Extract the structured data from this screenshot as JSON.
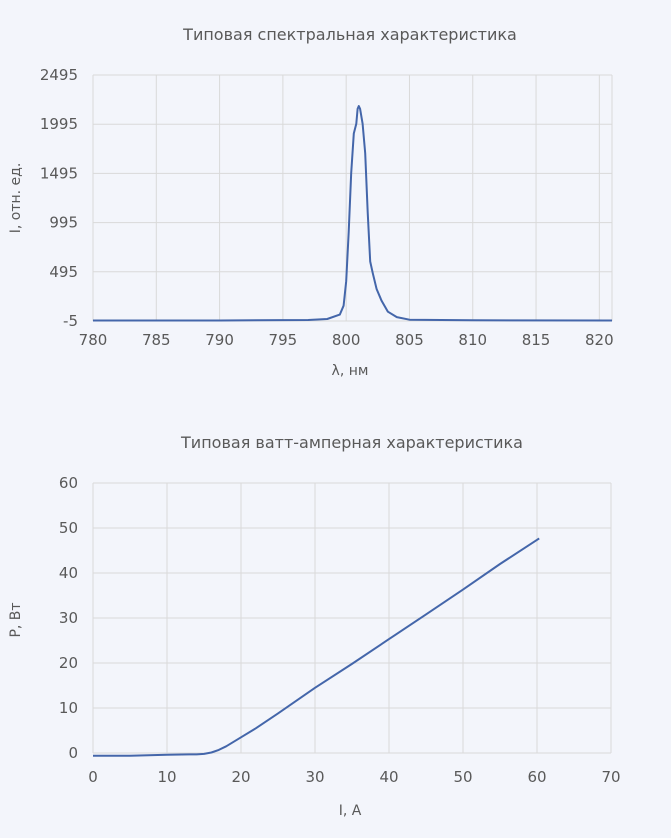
{
  "chart_data": [
    {
      "type": "line",
      "title": "Типовая спектральная характеристика",
      "xlabel": "λ, нм",
      "ylabel": "I, отн. ед.",
      "xlim": [
        780,
        821
      ],
      "ylim": [
        -5,
        2495
      ],
      "xticks": [
        780,
        785,
        790,
        795,
        800,
        805,
        810,
        815,
        820
      ],
      "yticks": [
        -5,
        495,
        995,
        1495,
        1995,
        2495
      ],
      "grid": true,
      "series": [
        {
          "color": "#4466aa",
          "x": [
            780,
            790,
            797,
            798.5,
            799.5,
            799.8,
            800.0,
            800.2,
            800.4,
            800.6,
            800.8,
            800.9,
            801.0,
            801.1,
            801.3,
            801.5,
            801.7,
            801.9,
            802.1,
            802.4,
            802.8,
            803.3,
            804,
            805,
            810,
            821
          ],
          "y": [
            0,
            0,
            5,
            15,
            60,
            150,
            400,
            900,
            1500,
            1900,
            2000,
            2150,
            2180,
            2150,
            2000,
            1700,
            1100,
            600,
            480,
            320,
            200,
            90,
            35,
            8,
            2,
            0
          ]
        }
      ]
    },
    {
      "type": "line",
      "title": "Типовая ватт-амперная характеристика",
      "xlabel": "I, A",
      "ylabel": "P, Вт",
      "xlim": [
        0,
        70
      ],
      "ylim": [
        0,
        60
      ],
      "xticks": [
        0,
        10,
        20,
        30,
        40,
        50,
        60,
        70
      ],
      "yticks": [
        0,
        10,
        20,
        30,
        40,
        50,
        60
      ],
      "grid": true,
      "series": [
        {
          "color": "#4466aa",
          "x": [
            0,
            5,
            10,
            13,
            14,
            15,
            16,
            17,
            18,
            19,
            20,
            22,
            25,
            30,
            35,
            40,
            45,
            50,
            55,
            60.3
          ],
          "y": [
            -0.6,
            -0.6,
            -0.4,
            -0.3,
            -0.3,
            -0.2,
            0.1,
            0.7,
            1.5,
            2.5,
            3.5,
            5.5,
            8.8,
            14.5,
            19.8,
            25.3,
            30.8,
            36.3,
            42.0,
            47.7
          ]
        }
      ]
    }
  ]
}
